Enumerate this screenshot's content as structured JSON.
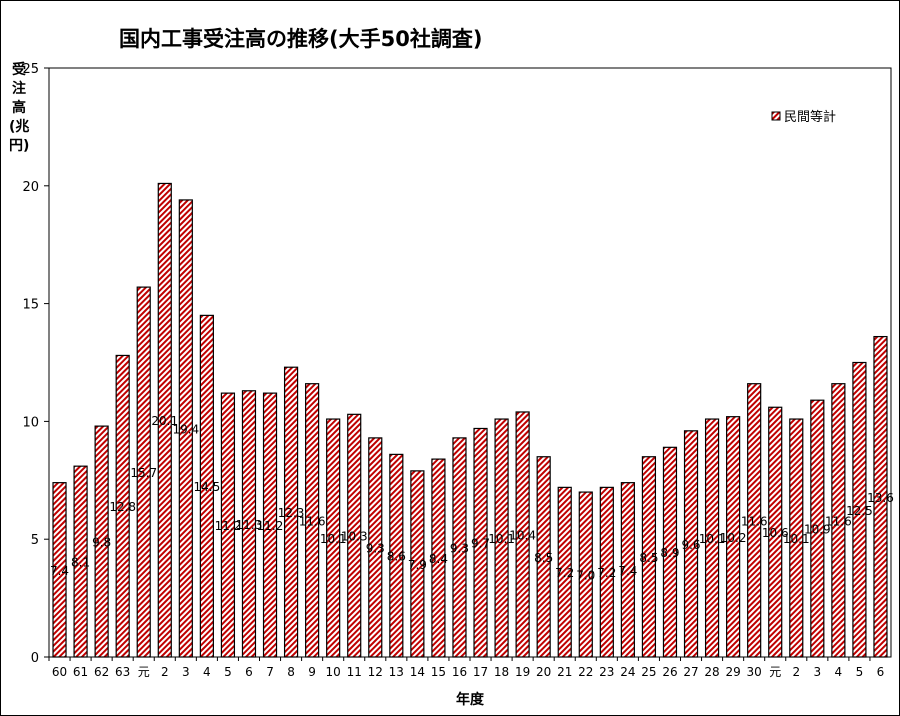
{
  "chart_data": {
    "type": "bar",
    "title": "国内工事受注高の推移(大手50社調査)",
    "ylabel": "受注高(兆円)",
    "xlabel": "年度",
    "ylim": [
      0,
      25
    ],
    "yticks": [
      0,
      5,
      10,
      15,
      20,
      25
    ],
    "grid": false,
    "legend_position": "top-right",
    "categories": [
      "60",
      "61",
      "62",
      "63",
      "元",
      "2",
      "3",
      "4",
      "5",
      "6",
      "7",
      "8",
      "9",
      "10",
      "11",
      "12",
      "13",
      "14",
      "15",
      "16",
      "17",
      "18",
      "19",
      "20",
      "21",
      "22",
      "23",
      "24",
      "25",
      "26",
      "27",
      "28",
      "29",
      "30",
      "元",
      "2",
      "3",
      "4",
      "5",
      "6"
    ],
    "series": [
      {
        "name": "民間等計",
        "color": "#c00000",
        "values": [
          7.4,
          8.1,
          9.8,
          12.8,
          15.7,
          20.1,
          19.4,
          14.5,
          11.2,
          11.3,
          11.2,
          12.3,
          11.6,
          10.1,
          10.3,
          9.3,
          8.6,
          7.9,
          8.4,
          9.3,
          9.7,
          10.1,
          10.4,
          8.5,
          7.2,
          7.0,
          7.2,
          7.4,
          8.5,
          8.9,
          9.6,
          10.1,
          10.2,
          11.6,
          10.6,
          10.1,
          10.9,
          11.6,
          12.5,
          13.6
        ]
      }
    ]
  }
}
